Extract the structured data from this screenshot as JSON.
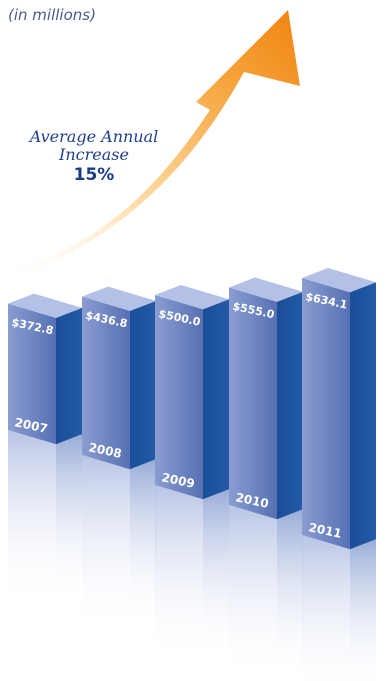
{
  "subtitle": "(in millions)",
  "annotation": {
    "line1": "Average Annual",
    "line2": "Increase",
    "value": "15%"
  },
  "colors": {
    "bar_front_light": "#8396cc",
    "bar_front_dark": "#4f68ad",
    "bar_side": "#1c4f9a",
    "bar_top": "#b6c4e6",
    "arrow_light": "#fde2b0",
    "arrow_dark": "#f08a14"
  },
  "chart_data": {
    "type": "bar",
    "style": "3d-columns-with-reflection",
    "categories": [
      "2007",
      "2008",
      "2009",
      "2010",
      "2011"
    ],
    "values": [
      372.8,
      436.8,
      500.0,
      555.0,
      634.1
    ],
    "value_labels": [
      "$372.8",
      "$436.8",
      "$500.0",
      "$555.0",
      "$634.1"
    ],
    "title": "",
    "xlabel": "",
    "ylabel": "",
    "grid": false,
    "legend": "none"
  }
}
